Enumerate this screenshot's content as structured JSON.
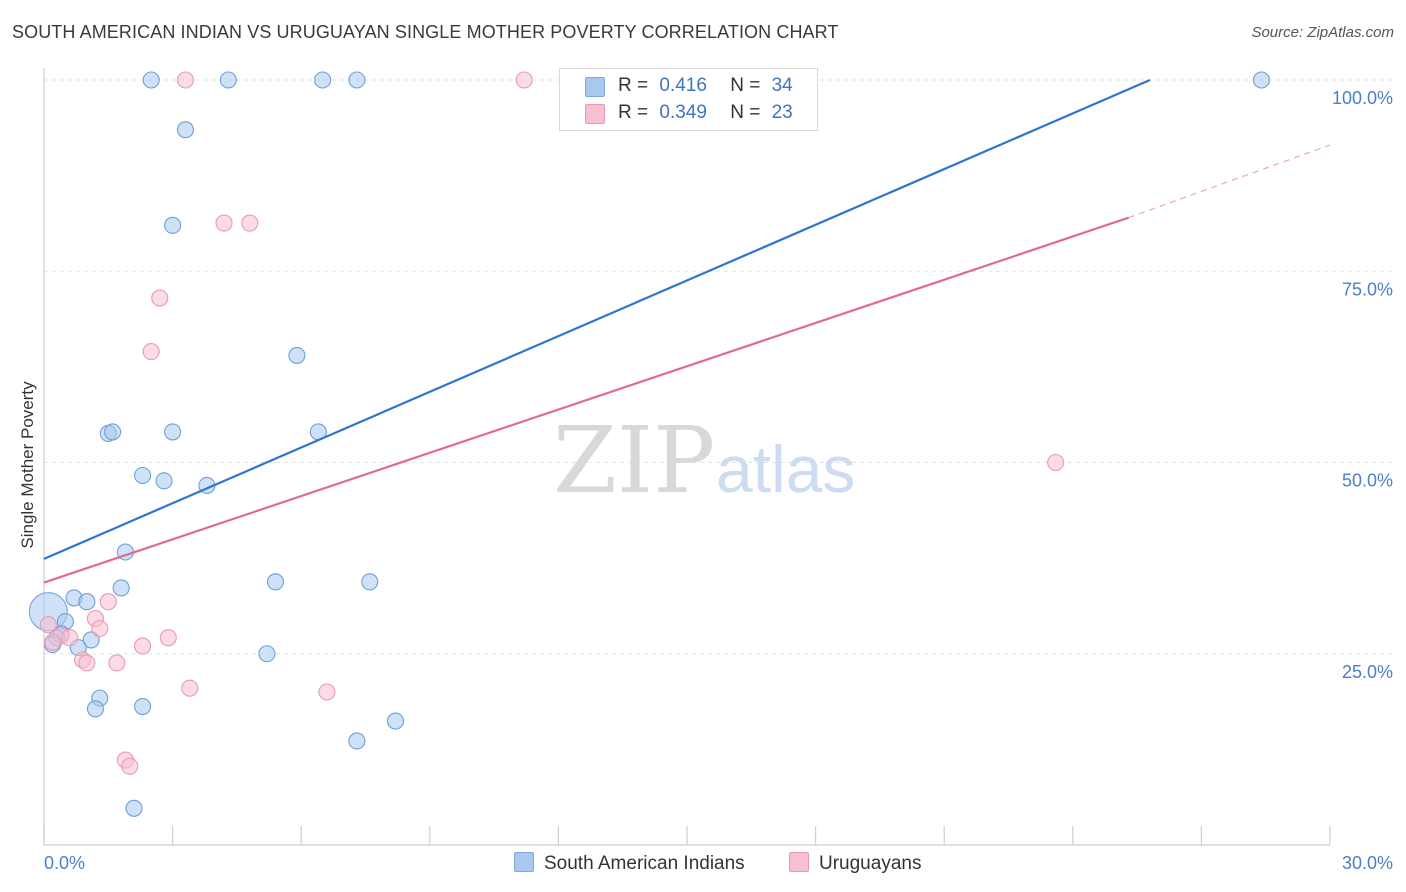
{
  "title": "SOUTH AMERICAN INDIAN VS URUGUAYAN SINGLE MOTHER POVERTY CORRELATION CHART",
  "source": "Source: ZipAtlas.com",
  "watermark": {
    "zip": "ZIP",
    "atlas": "atlas"
  },
  "legend_stats": [
    {
      "r_label": "R =",
      "r_value": "0.416",
      "n_label": "N =",
      "n_value": "34",
      "color": "#a8c8f0",
      "border": "#7ea8dc"
    },
    {
      "r_label": "R =",
      "r_value": "0.349",
      "n_label": "N =",
      "n_value": "23",
      "color": "#f7bfd0",
      "border": "#e89ab3"
    }
  ],
  "chart_data": {
    "type": "scatter",
    "title": "SOUTH AMERICAN INDIAN VS URUGUAYAN SINGLE MOTHER POVERTY CORRELATION CHART",
    "xlabel": "",
    "ylabel": "Single Mother Poverty",
    "xlim": [
      0,
      30
    ],
    "ylim": [
      0,
      100
    ],
    "x_tick_labels": [
      "0.0%",
      "30.0%"
    ],
    "y_ticks": [
      25,
      50,
      75,
      100
    ],
    "y_tick_labels": [
      "25.0%",
      "50.0%",
      "75.0%",
      "100.0%"
    ],
    "series": [
      {
        "name": "South American Indians",
        "color": "#a8c8f0",
        "stroke": "#6f9fd8",
        "line_color": "#2f74d0",
        "trend": {
          "x0": 0,
          "y0": 37.4,
          "x1": 25.8,
          "y1": 100
        },
        "points": [
          {
            "x": 2.5,
            "y": 100
          },
          {
            "x": 4.3,
            "y": 100
          },
          {
            "x": 6.5,
            "y": 100
          },
          {
            "x": 7.3,
            "y": 100
          },
          {
            "x": 28.4,
            "y": 100
          },
          {
            "x": 3.3,
            "y": 93.5
          },
          {
            "x": 3.0,
            "y": 81
          },
          {
            "x": 5.9,
            "y": 64
          },
          {
            "x": 1.5,
            "y": 53.8
          },
          {
            "x": 1.6,
            "y": 54
          },
          {
            "x": 3.0,
            "y": 54
          },
          {
            "x": 6.4,
            "y": 54
          },
          {
            "x": 2.3,
            "y": 48.3
          },
          {
            "x": 2.8,
            "y": 47.6
          },
          {
            "x": 3.8,
            "y": 47
          },
          {
            "x": 1.9,
            "y": 38.3
          },
          {
            "x": 1.8,
            "y": 33.6
          },
          {
            "x": 5.4,
            "y": 34.4
          },
          {
            "x": 7.6,
            "y": 34.4
          },
          {
            "x": 0.7,
            "y": 32.3
          },
          {
            "x": 1.0,
            "y": 31.8
          },
          {
            "x": 0.5,
            "y": 29.2
          },
          {
            "x": 0.4,
            "y": 27.6
          },
          {
            "x": 0.3,
            "y": 27.1
          },
          {
            "x": 1.1,
            "y": 26.8
          },
          {
            "x": 0.2,
            "y": 26.2
          },
          {
            "x": 0.8,
            "y": 25.8
          },
          {
            "x": 5.2,
            "y": 25
          },
          {
            "x": 1.3,
            "y": 19.2
          },
          {
            "x": 1.2,
            "y": 17.8
          },
          {
            "x": 2.3,
            "y": 18.1
          },
          {
            "x": 8.2,
            "y": 16.2
          },
          {
            "x": 7.3,
            "y": 13.6
          },
          {
            "x": 2.1,
            "y": 4.8
          }
        ],
        "big_point": {
          "x": 0.1,
          "y": 30.5
        }
      },
      {
        "name": "Uruguayans",
        "color": "#f7bfd0",
        "stroke": "#e89ab3",
        "line_color": "#e06a93",
        "trend": {
          "x0": 0,
          "y0": 34.3,
          "x1": 25.3,
          "y1": 82
        },
        "trend_ext": {
          "x0": 25.3,
          "y0": 82,
          "x1": 30,
          "y1": 91.5
        },
        "points": [
          {
            "x": 3.3,
            "y": 100
          },
          {
            "x": 11.2,
            "y": 100
          },
          {
            "x": 4.2,
            "y": 81.3
          },
          {
            "x": 4.8,
            "y": 81.3
          },
          {
            "x": 2.7,
            "y": 71.5
          },
          {
            "x": 2.5,
            "y": 64.5
          },
          {
            "x": 23.6,
            "y": 50
          },
          {
            "x": 1.5,
            "y": 31.8
          },
          {
            "x": 1.2,
            "y": 29.6
          },
          {
            "x": 1.3,
            "y": 28.3
          },
          {
            "x": 0.4,
            "y": 27.4
          },
          {
            "x": 0.6,
            "y": 27.1
          },
          {
            "x": 2.9,
            "y": 27.1
          },
          {
            "x": 2.3,
            "y": 26
          },
          {
            "x": 0.2,
            "y": 26.5
          },
          {
            "x": 0.9,
            "y": 24.2
          },
          {
            "x": 1.0,
            "y": 23.8
          },
          {
            "x": 1.7,
            "y": 23.8
          },
          {
            "x": 3.4,
            "y": 20.5
          },
          {
            "x": 6.6,
            "y": 20
          },
          {
            "x": 1.9,
            "y": 11.1
          },
          {
            "x": 2.0,
            "y": 10.3
          },
          {
            "x": 0.1,
            "y": 28.8
          }
        ]
      }
    ]
  }
}
